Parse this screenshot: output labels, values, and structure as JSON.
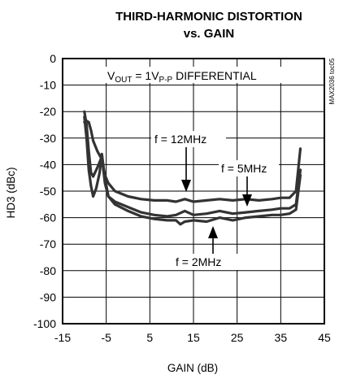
{
  "chart_data": {
    "type": "line",
    "title_line1": "THIRD-HARMONIC DISTORTION",
    "title_line2": "vs. GAIN",
    "xlabel": "GAIN (dB)",
    "ylabel": "HD3 (dBc)",
    "xlim": [
      -15,
      45
    ],
    "ylim": [
      -100,
      0
    ],
    "xticks": [
      -15,
      -5,
      5,
      15,
      25,
      35,
      45
    ],
    "yticks": [
      0,
      -10,
      -20,
      -30,
      -40,
      -50,
      -60,
      -70,
      -80,
      -90,
      -100
    ],
    "grid": true,
    "side_label": "MAX2036 toc05",
    "vout_label": {
      "prefix": "V",
      "sub": "OUT",
      "mid": " = 1V",
      "sub2": "P-P",
      "suffix": " DIFFERENTIAL"
    },
    "series": [
      {
        "name": "f = 12MHz",
        "x": [
          -10,
          -9.5,
          -9,
          -8.5,
          -8,
          -7,
          -6,
          -5.3,
          -4.5,
          -3,
          0,
          3,
          6,
          9,
          11,
          13,
          15,
          18,
          21,
          24,
          27,
          30,
          33,
          35,
          37,
          38.5,
          39.5
        ],
        "y": [
          -24,
          -23.5,
          -24,
          -27,
          -31,
          -35,
          -38,
          -44,
          -47,
          -50,
          -52,
          -53,
          -53.5,
          -53.5,
          -54,
          -53,
          -54,
          -53.5,
          -53,
          -53.5,
          -53,
          -53.5,
          -53,
          -52.5,
          -52.5,
          -50,
          -34
        ]
      },
      {
        "name": "f = 5MHz",
        "x": [
          -10,
          -9.5,
          -9,
          -8.5,
          -8,
          -7,
          -6,
          -5.3,
          -4.5,
          -3,
          0,
          3,
          6,
          9,
          11,
          13,
          15,
          18,
          21,
          24,
          27,
          30,
          33,
          35,
          37,
          38.5,
          39.5
        ],
        "y": [
          -20,
          -25,
          -35,
          -43,
          -44.5,
          -41,
          -37,
          -47,
          -52,
          -54,
          -56,
          -58,
          -59,
          -59.5,
          -59,
          -57.5,
          -59,
          -58.5,
          -57.5,
          -58.5,
          -58,
          -57.5,
          -57,
          -56.5,
          -56.5,
          -55,
          -42
        ]
      },
      {
        "name": "f = 2MHz",
        "x": [
          -10,
          -9.5,
          -9,
          -8.5,
          -8,
          -7.3,
          -6.5,
          -6,
          -5.3,
          -4.5,
          -3,
          0,
          3,
          6,
          9,
          11,
          12,
          13,
          15,
          18,
          21,
          24,
          27,
          30,
          33,
          35,
          37,
          38.5,
          39.5
        ],
        "y": [
          -22,
          -30,
          -42,
          -48,
          -52,
          -49,
          -43,
          -36,
          -45,
          -52,
          -55,
          -57.5,
          -59.5,
          -60.5,
          -61,
          -61,
          -62.5,
          -61.5,
          -61,
          -61.5,
          -60,
          -61,
          -60,
          -59.5,
          -59,
          -59,
          -58.5,
          -57,
          -44
        ]
      }
    ],
    "annotations": [
      {
        "text": "f = 12MHz"
      },
      {
        "text": "f = 5MHz"
      },
      {
        "text": "f = 2MHz"
      }
    ]
  }
}
